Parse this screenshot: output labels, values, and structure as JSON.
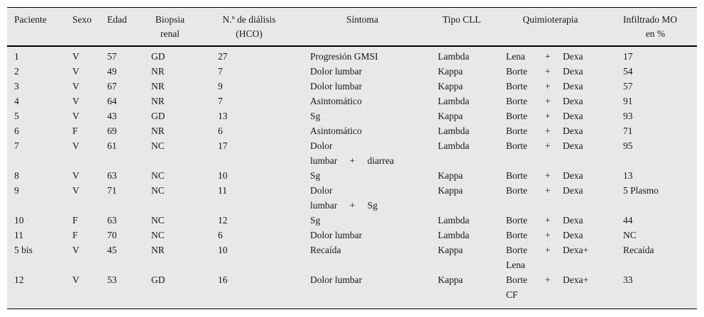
{
  "colors": {
    "table_background": "#e7e9e8",
    "rule_color": "#000000",
    "text_color": "#161616"
  },
  "table": {
    "headers": {
      "paciente": "Paciente",
      "sexo": "Sexo",
      "edad": "Edad",
      "biopsia_l1": "Biopsia",
      "biopsia_l2": "renal",
      "dialisis_l1": "N.º de diálisis",
      "dialisis_l2": "(HCO)",
      "sintoma": "Síntoma",
      "tipo_cll": "Tipo CLL",
      "quimioterapia": "Quimioterapia",
      "infiltrado_l1": "Infiltrado MO",
      "infiltrado_l2": "en %"
    },
    "rows": [
      {
        "paciente": "1",
        "sexo": "V",
        "edad": "57",
        "biopsia": "GD",
        "dialisis": "27",
        "sintoma": [
          "Progresión GMSI"
        ],
        "tipo_cll": "Lambda",
        "quimio": {
          "a": "Lena",
          "p": "+",
          "b": "Dexa",
          "extra": ""
        },
        "infiltrado": "17"
      },
      {
        "paciente": "2",
        "sexo": "V",
        "edad": "49",
        "biopsia": "NR",
        "dialisis": "7",
        "sintoma": [
          "Dolor lumbar"
        ],
        "tipo_cll": "Kappa",
        "quimio": {
          "a": "Borte",
          "p": "+",
          "b": "Dexa",
          "extra": ""
        },
        "infiltrado": "54"
      },
      {
        "paciente": "3",
        "sexo": "V",
        "edad": "67",
        "biopsia": "NR",
        "dialisis": "9",
        "sintoma": [
          "Dolor lumbar"
        ],
        "tipo_cll": "Kappa",
        "quimio": {
          "a": "Borte",
          "p": "+",
          "b": "Dexa",
          "extra": ""
        },
        "infiltrado": "57"
      },
      {
        "paciente": "4",
        "sexo": "V",
        "edad": "64",
        "biopsia": "NR",
        "dialisis": "7",
        "sintoma": [
          "Asintomático"
        ],
        "tipo_cll": "Lambda",
        "quimio": {
          "a": "Borte",
          "p": "+",
          "b": "Dexa",
          "extra": ""
        },
        "infiltrado": "91"
      },
      {
        "paciente": "5",
        "sexo": "V",
        "edad": "43",
        "biopsia": "GD",
        "dialisis": "13",
        "sintoma": [
          "Sg"
        ],
        "tipo_cll": "Kappa",
        "quimio": {
          "a": "Borte",
          "p": "+",
          "b": "Dexa",
          "extra": ""
        },
        "infiltrado": "93"
      },
      {
        "paciente": "6",
        "sexo": "F",
        "edad": "69",
        "biopsia": "NR",
        "dialisis": "6",
        "sintoma": [
          "Asintomático"
        ],
        "tipo_cll": "Lambda",
        "quimio": {
          "a": "Borte",
          "p": "+",
          "b": "Dexa",
          "extra": ""
        },
        "infiltrado": "71"
      },
      {
        "paciente": "7",
        "sexo": "V",
        "edad": "61",
        "biopsia": "NC",
        "dialisis": "17",
        "sintoma": [
          "Dolor",
          "lumbar + diarrea"
        ],
        "tipo_cll": "Lambda",
        "quimio": {
          "a": "Borte",
          "p": "+",
          "b": "Dexa",
          "extra": ""
        },
        "infiltrado": "95"
      },
      {
        "paciente": "8",
        "sexo": "V",
        "edad": "63",
        "biopsia": "NC",
        "dialisis": "10",
        "sintoma": [
          "Sg"
        ],
        "tipo_cll": "Kappa",
        "quimio": {
          "a": "Borte",
          "p": "+",
          "b": "Dexa",
          "extra": ""
        },
        "infiltrado": "13"
      },
      {
        "paciente": "9",
        "sexo": "V",
        "edad": "71",
        "biopsia": "NC",
        "dialisis": "11",
        "sintoma": [
          "Dolor",
          "lumbar + Sg"
        ],
        "tipo_cll": "Kappa",
        "quimio": {
          "a": "Borte",
          "p": "+",
          "b": "Dexa",
          "extra": ""
        },
        "infiltrado": "5 Plasmo"
      },
      {
        "paciente": "10",
        "sexo": "F",
        "edad": "63",
        "biopsia": "NC",
        "dialisis": "12",
        "sintoma": [
          "Sg"
        ],
        "tipo_cll": "Lambda",
        "quimio": {
          "a": "Borte",
          "p": "+",
          "b": "Dexa",
          "extra": ""
        },
        "infiltrado": "44"
      },
      {
        "paciente": "11",
        "sexo": "F",
        "edad": "70",
        "biopsia": "NC",
        "dialisis": "6",
        "sintoma": [
          "Dolor lumbar"
        ],
        "tipo_cll": "Lambda",
        "quimio": {
          "a": "Borte",
          "p": "+",
          "b": "Dexa",
          "extra": ""
        },
        "infiltrado": "NC"
      },
      {
        "paciente": "5 bis",
        "sexo": "V",
        "edad": "45",
        "biopsia": "NR",
        "dialisis": "10",
        "sintoma": [
          "Recaída"
        ],
        "tipo_cll": "Kappa",
        "quimio": {
          "a": "Borte",
          "p": "+",
          "b": "Dexa+",
          "extra": "Lena"
        },
        "infiltrado": "Recaída"
      },
      {
        "paciente": "12",
        "sexo": "V",
        "edad": "53",
        "biopsia": "GD",
        "dialisis": "16",
        "sintoma": [
          "Dolor lumbar"
        ],
        "tipo_cll": "Kappa",
        "quimio": {
          "a": "Borte",
          "p": "+",
          "b": "Dexa+",
          "extra": "CF"
        },
        "infiltrado": "33"
      }
    ]
  }
}
